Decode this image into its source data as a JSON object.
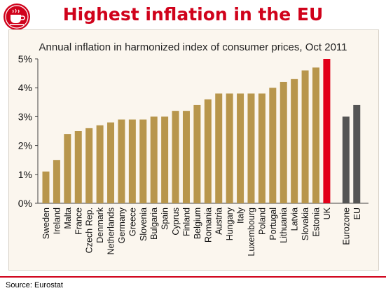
{
  "header": {
    "title": "Highest inflation in the EU",
    "logo_icon": "coffee-cup-logo-icon"
  },
  "colors": {
    "accent": "#d0021b",
    "bar_default": "#b8964c",
    "bar_highlight": "#e2001a",
    "bar_aggregate": "#555555",
    "panel_bg": "#fbf6ee"
  },
  "chart_data": {
    "type": "bar",
    "title": "Annual inflation in harmonized index of consumer prices, Oct 2011",
    "xlabel": "",
    "ylabel": "",
    "ylim": [
      0,
      5
    ],
    "yticks": [
      0,
      1,
      2,
      3,
      4,
      5
    ],
    "yticklabels": [
      "0%",
      "1%",
      "2%",
      "3%",
      "4%",
      "5%"
    ],
    "grid": false,
    "categories": [
      "Sweden",
      "Ireland",
      "Malta",
      "France",
      "Czech Rep.",
      "Denmark",
      "Netherlands",
      "Germany",
      "Greece",
      "Slovenia",
      "Bulgaria",
      "Spain",
      "Cyprus",
      "Finland",
      "Belgium",
      "Romania",
      "Austria",
      "Hungary",
      "Italy",
      "Luxembourg",
      "Poland",
      "Portugal",
      "Lithuania",
      "Latvia",
      "Slovakia",
      "Estonia",
      "UK",
      "Eurozone",
      "EU"
    ],
    "values": [
      1.1,
      1.5,
      2.4,
      2.5,
      2.6,
      2.7,
      2.8,
      2.9,
      2.9,
      2.9,
      3.0,
      3.0,
      3.2,
      3.2,
      3.4,
      3.6,
      3.8,
      3.8,
      3.8,
      3.8,
      3.8,
      4.0,
      4.2,
      4.3,
      4.6,
      4.7,
      5.0,
      3.0,
      3.4
    ],
    "highlight": [
      "UK"
    ],
    "aggregates": [
      "Eurozone",
      "EU"
    ]
  },
  "footer": {
    "source": "Source: Eurostat"
  }
}
